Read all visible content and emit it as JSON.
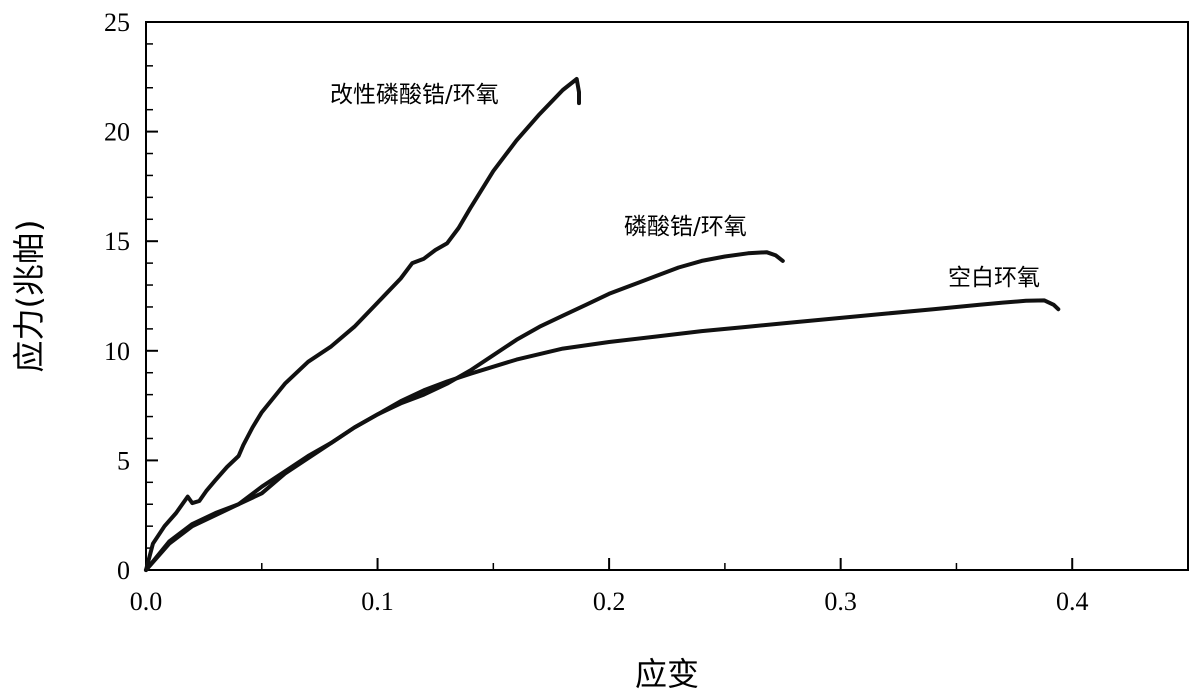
{
  "chart_data": {
    "type": "line",
    "title": "",
    "xlabel": "应变",
    "ylabel": "应力(兆帕)",
    "xlim": [
      0,
      0.45
    ],
    "ylim": [
      0,
      25
    ],
    "x_ticks": [
      0.0,
      0.1,
      0.2,
      0.3,
      0.4
    ],
    "x_tick_labels": [
      "0.0",
      "0.1",
      "0.2",
      "0.3",
      "0.4"
    ],
    "y_ticks": [
      0,
      5,
      10,
      15,
      20,
      25
    ],
    "y_tick_labels": [
      "0",
      "5",
      "10",
      "15",
      "20",
      "25"
    ],
    "grid": false,
    "legend": "none",
    "line_color": "#111111",
    "series": [
      {
        "name": "改性磷酸锆/环氧",
        "x": [
          0.0,
          0.003,
          0.008,
          0.013,
          0.018,
          0.02,
          0.023,
          0.026,
          0.03,
          0.035,
          0.04,
          0.042,
          0.046,
          0.05,
          0.06,
          0.07,
          0.08,
          0.09,
          0.1,
          0.11,
          0.115,
          0.12,
          0.125,
          0.13,
          0.135,
          0.14,
          0.15,
          0.16,
          0.17,
          0.18,
          0.186,
          0.187,
          0.187
        ],
        "y": [
          0.0,
          1.2,
          2.0,
          2.6,
          3.35,
          3.05,
          3.15,
          3.6,
          4.1,
          4.7,
          5.2,
          5.7,
          6.5,
          7.2,
          8.5,
          9.5,
          10.2,
          11.1,
          12.2,
          13.3,
          14.0,
          14.2,
          14.6,
          14.9,
          15.6,
          16.5,
          18.2,
          19.6,
          20.8,
          21.9,
          22.4,
          21.8,
          21.3
        ]
      },
      {
        "name": "磷酸锆/环氧",
        "x": [
          0.0,
          0.01,
          0.02,
          0.03,
          0.04,
          0.05,
          0.06,
          0.07,
          0.08,
          0.09,
          0.1,
          0.11,
          0.12,
          0.13,
          0.14,
          0.15,
          0.16,
          0.17,
          0.18,
          0.19,
          0.2,
          0.21,
          0.22,
          0.23,
          0.24,
          0.25,
          0.26,
          0.268,
          0.272,
          0.275
        ],
        "y": [
          0.0,
          1.3,
          2.1,
          2.6,
          3.0,
          3.5,
          4.4,
          5.1,
          5.8,
          6.5,
          7.1,
          7.6,
          8.0,
          8.5,
          9.1,
          9.8,
          10.5,
          11.1,
          11.6,
          12.1,
          12.6,
          13.0,
          13.4,
          13.8,
          14.1,
          14.3,
          14.45,
          14.5,
          14.35,
          14.1
        ]
      },
      {
        "name": "空白环氧",
        "x": [
          0.0,
          0.01,
          0.02,
          0.03,
          0.04,
          0.05,
          0.06,
          0.07,
          0.08,
          0.09,
          0.1,
          0.11,
          0.12,
          0.13,
          0.14,
          0.16,
          0.18,
          0.2,
          0.22,
          0.24,
          0.26,
          0.28,
          0.3,
          0.32,
          0.34,
          0.36,
          0.37,
          0.38,
          0.388,
          0.392,
          0.394
        ],
        "y": [
          0.0,
          1.2,
          2.0,
          2.5,
          3.0,
          3.8,
          4.5,
          5.2,
          5.8,
          6.5,
          7.1,
          7.7,
          8.2,
          8.6,
          8.95,
          9.6,
          10.1,
          10.4,
          10.65,
          10.9,
          11.1,
          11.3,
          11.5,
          11.7,
          11.9,
          12.1,
          12.2,
          12.28,
          12.3,
          12.1,
          11.9
        ]
      }
    ]
  }
}
